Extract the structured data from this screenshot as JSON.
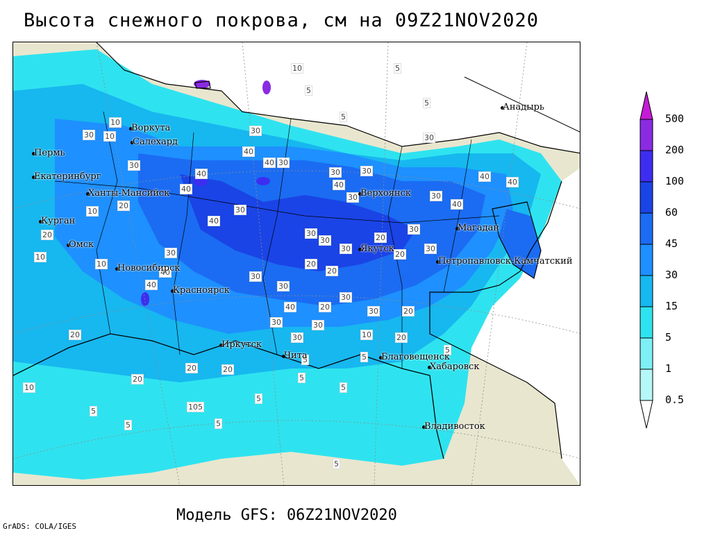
{
  "title": "Высота снежного покрова, см на 09Z21NOV2020",
  "footer": "Модель GFS: 06Z21NOV2020",
  "credit": "GrADS: COLA/IGES",
  "legend": {
    "levels": [
      {
        "label": "0.5",
        "color": "#b6f7f7"
      },
      {
        "label": "1",
        "color": "#7df0f5"
      },
      {
        "label": "5",
        "color": "#2ee3ef"
      },
      {
        "label": "15",
        "color": "#17b7ef"
      },
      {
        "label": "30",
        "color": "#1e90ff"
      },
      {
        "label": "45",
        "color": "#1b6cf2"
      },
      {
        "label": "60",
        "color": "#1a44e6"
      },
      {
        "label": "100",
        "color": "#3d2df0"
      },
      {
        "label": "200",
        "color": "#8a2be2"
      },
      {
        "label": "500",
        "color": "#c51bd6"
      }
    ]
  },
  "cities": [
    {
      "name": "Воркута"
    },
    {
      "name": "Салехард"
    },
    {
      "name": "Пермь"
    },
    {
      "name": "Екатеринбург"
    },
    {
      "name": "Ханты-Мансийск"
    },
    {
      "name": "Курган"
    },
    {
      "name": "Омск"
    },
    {
      "name": "Новосибирск"
    },
    {
      "name": "Красноярск"
    },
    {
      "name": "Иркутск"
    },
    {
      "name": "Чита"
    },
    {
      "name": "Якутск"
    },
    {
      "name": "Верхоянск"
    },
    {
      "name": "Магадан"
    },
    {
      "name": "Анадырь"
    },
    {
      "name": "Петропавловск-Камчатский"
    },
    {
      "name": "Благовещенск"
    },
    {
      "name": "Хабаровск"
    },
    {
      "name": "Владивосток"
    }
  ],
  "contour_labels": [
    "10",
    "5",
    "10",
    "5",
    "5",
    "5",
    "10",
    "30",
    "30",
    "30",
    "30",
    "40",
    "40",
    "30",
    "40",
    "40",
    "40",
    "30",
    "30",
    "40",
    "30",
    "30",
    "40",
    "40",
    "30",
    "20",
    "10",
    "20",
    "40",
    "30",
    "30",
    "40",
    "40",
    "30",
    "30",
    "40",
    "30",
    "10",
    "10",
    "30",
    "30",
    "20",
    "20",
    "20",
    "30",
    "30",
    "20",
    "20",
    "20",
    "30",
    "30",
    "20",
    "30",
    "30",
    "10",
    "20",
    "20",
    "5",
    "5",
    "20",
    "5",
    "5",
    "105",
    "5",
    "5",
    "5",
    "5",
    "5",
    "20",
    "10",
    "5"
  ]
}
